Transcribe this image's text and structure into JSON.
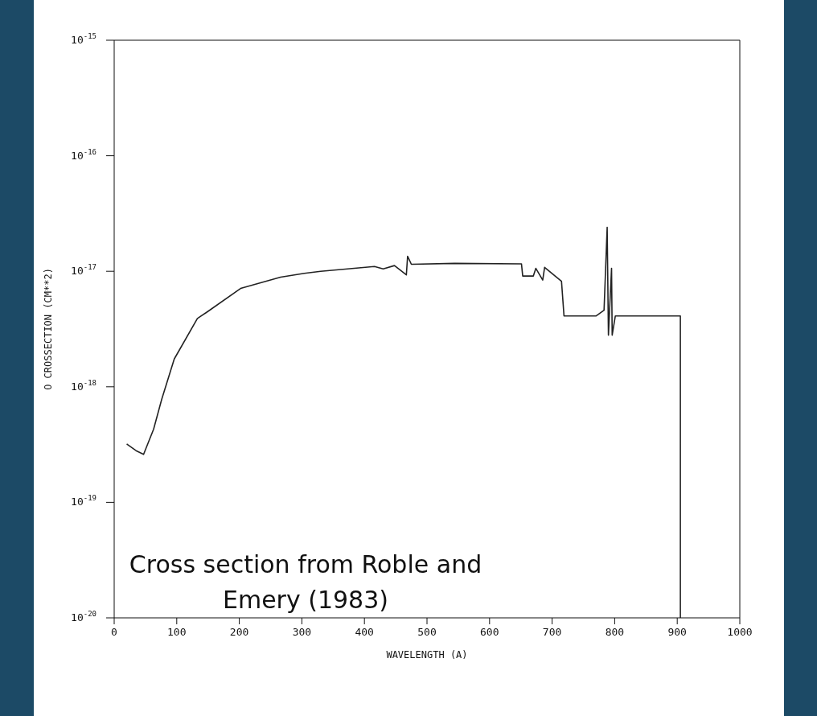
{
  "chart_data": {
    "type": "line",
    "xlabel": "WAVELENGTH (A)",
    "ylabel": "O CROSSECTION (CM**2)",
    "log": "y",
    "xlim": [
      0,
      1000
    ],
    "ylim": [
      1e-20,
      1e-15
    ],
    "xticks": [
      0,
      100,
      200,
      300,
      400,
      500,
      600,
      700,
      800,
      900,
      1000
    ],
    "yticks": [
      {
        "value": 1e-20,
        "label": "10$^{-20}$"
      },
      {
        "value": 1e-19,
        "label": "10$^{-19}$"
      },
      {
        "value": 1e-18,
        "label": "10$^{-18}$"
      },
      {
        "value": 1e-17,
        "label": "10$^{-17}$"
      },
      {
        "value": 1e-16,
        "label": "10$^{-16}$"
      },
      {
        "value": 1e-15,
        "label": "10$^{-15}$"
      }
    ],
    "marker": "none",
    "line_style": "solid",
    "series": [
      {
        "color": "#222222",
        "x": [
          20,
          35,
          47,
          63,
          76,
          96,
          133,
          150,
          202,
          266,
          304,
          330,
          416,
          430,
          448,
          467,
          469,
          475,
          544,
          651,
          653,
          670,
          674,
          685,
          688,
          715,
          719,
          770,
          783,
          788,
          790,
          795,
          796,
          801,
          905,
          905
        ],
        "values": [
          3.2e-19,
          2.8e-19,
          2.6e-19,
          4.3e-19,
          7.8e-19,
          1.74e-18,
          3.9e-18,
          4.5e-18,
          7.1e-18,
          8.9e-18,
          9.6e-18,
          1e-17,
          1.1e-17,
          1.05e-17,
          1.12e-17,
          9.3e-18,
          1.35e-17,
          1.15e-17,
          1.17e-17,
          1.16e-17,
          9.1e-18,
          9.1e-18,
          1.06e-17,
          8.4e-18,
          1.08e-17,
          8.2e-18,
          4.1e-18,
          4.1e-18,
          4.6e-18,
          2.4e-17,
          2.8e-18,
          1.06e-17,
          2.8e-18,
          4.1e-18,
          4.1e-18,
          1e-20
        ]
      }
    ],
    "annotations": [
      "Cross section from Roble and Emery (1983)"
    ]
  }
}
